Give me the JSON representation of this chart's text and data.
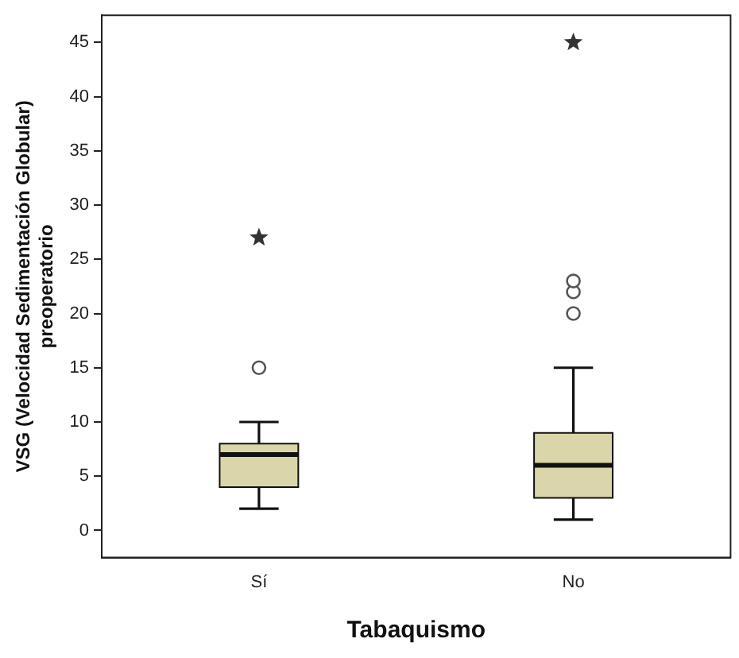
{
  "chart_data": {
    "type": "box",
    "xlabel": "Tabaquismo",
    "ylabel": "VSG (Velocidad Sedimentación Globular)\npreoperatorio",
    "categories": [
      "Sí",
      "No"
    ],
    "color": "#dbd6a9",
    "boxes": [
      {
        "low": 2,
        "q1": 4,
        "median": 7,
        "q3": 8,
        "high": 10,
        "outliers": [
          15
        ]
      },
      {
        "low": 1,
        "q1": 3,
        "median": 6,
        "q3": 9,
        "high": 15,
        "outliers": [
          20,
          22,
          23
        ]
      }
    ],
    "series": [
      {
        "type": "scatter",
        "marker": "star",
        "color": "#333333",
        "x": [
          "Sí",
          "No"
        ],
        "values": [
          27,
          45
        ]
      }
    ],
    "ylim": [
      -2.5,
      47.5
    ],
    "yticks": [
      0,
      5,
      10,
      15,
      20,
      25,
      30,
      35,
      40,
      45
    ],
    "grid": false,
    "legend": false
  }
}
